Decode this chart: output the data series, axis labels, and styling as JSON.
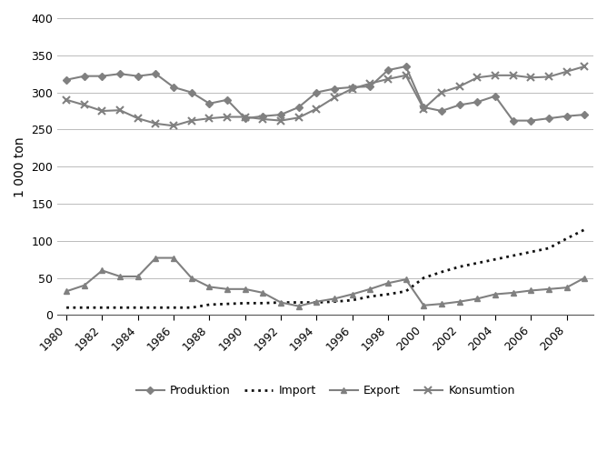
{
  "years": [
    1980,
    1981,
    1982,
    1983,
    1984,
    1985,
    1986,
    1987,
    1988,
    1989,
    1990,
    1991,
    1992,
    1993,
    1994,
    1995,
    1996,
    1997,
    1998,
    1999,
    2000,
    2001,
    2002,
    2003,
    2004,
    2005,
    2006,
    2007,
    2008,
    2009
  ],
  "produktion": [
    317,
    322,
    322,
    325,
    322,
    325,
    307,
    300,
    285,
    290,
    265,
    268,
    270,
    280,
    300,
    305,
    307,
    308,
    330,
    335,
    280,
    275,
    283,
    287,
    295,
    262,
    262,
    265,
    268,
    270
  ],
  "import_vals": [
    10,
    10,
    10,
    10,
    10,
    10,
    10,
    10,
    14,
    15,
    16,
    16,
    17,
    17,
    17,
    18,
    20,
    25,
    28,
    32,
    50,
    58,
    65,
    70,
    75,
    80,
    85,
    90,
    103,
    115
  ],
  "export_vals": [
    32,
    40,
    60,
    52,
    52,
    77,
    77,
    50,
    38,
    35,
    35,
    30,
    17,
    12,
    18,
    22,
    28,
    35,
    43,
    48,
    13,
    15,
    18,
    22,
    28,
    30,
    33,
    35,
    37,
    50
  ],
  "konsumtion": [
    290,
    283,
    275,
    276,
    265,
    258,
    255,
    262,
    265,
    267,
    267,
    264,
    262,
    266,
    278,
    293,
    305,
    312,
    318,
    323,
    278,
    300,
    308,
    320,
    323,
    323,
    320,
    321,
    328,
    335
  ],
  "ylim": [
    0,
    400
  ],
  "yticks": [
    0,
    50,
    100,
    150,
    200,
    250,
    300,
    350,
    400
  ],
  "ylabel": "1 000 ton",
  "line_color": "#808080",
  "xticks": [
    1980,
    1982,
    1984,
    1986,
    1988,
    1990,
    1992,
    1994,
    1996,
    1998,
    2000,
    2002,
    2004,
    2006,
    2008
  ]
}
